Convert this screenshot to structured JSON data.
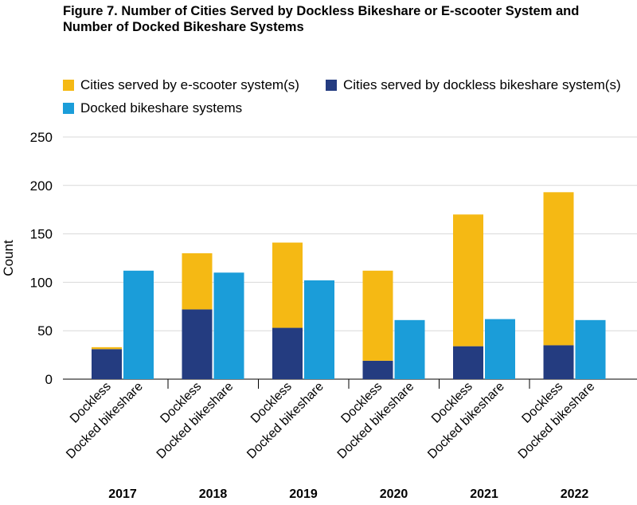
{
  "chart_data": {
    "type": "bar",
    "title": "Figure 7. Number of Cities Served by Dockless Bikeshare or E-scooter System and Number of Docked Bikeshare Systems",
    "ylabel": "Count",
    "xlabel": "",
    "ylim": [
      0,
      250
    ],
    "yticks": [
      0,
      50,
      100,
      150,
      200,
      250
    ],
    "grid": true,
    "legend_position": "top",
    "groups": [
      "2017",
      "2018",
      "2019",
      "2020",
      "2021",
      "2022"
    ],
    "bar_labels": [
      "Dockless",
      "Docked bikeshare"
    ],
    "series": [
      {
        "name": "Cities served by e-scooter system(s)",
        "color": "#F5B914",
        "stack": "Dockless",
        "values": [
          2,
          58,
          88,
          93,
          136,
          158
        ]
      },
      {
        "name": "Cities served by dockless bikeshare system(s)",
        "color": "#243C80",
        "stack": "Dockless",
        "values": [
          31,
          72,
          53,
          19,
          34,
          35
        ]
      },
      {
        "name": "Docked bikeshare systems",
        "color": "#1B9DD9",
        "stack": "Docked bikeshare",
        "values": [
          112,
          110,
          102,
          61,
          62,
          61
        ]
      }
    ]
  }
}
